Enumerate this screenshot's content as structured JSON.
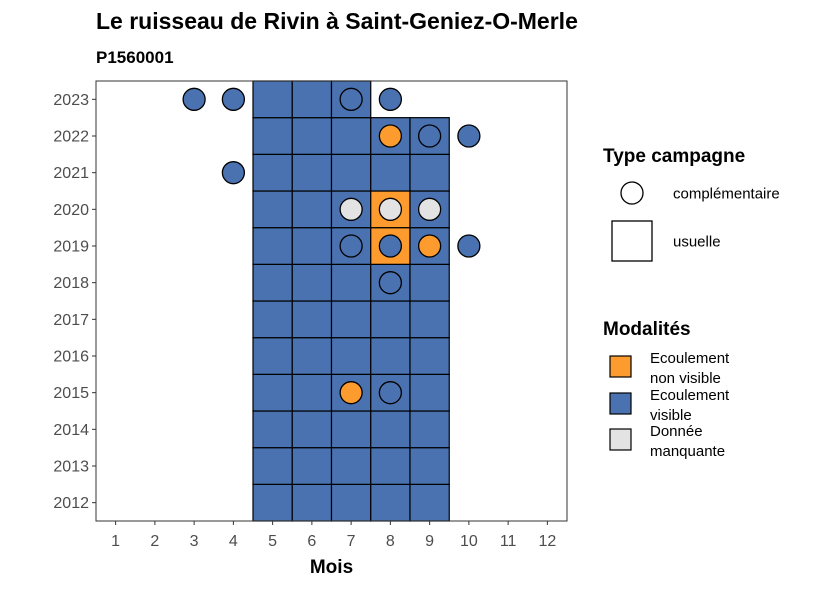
{
  "colors": {
    "Ecoulement visible": "#4a72b0",
    "Ecoulement non visible": "#fd9b2e",
    "Donnée manquante": "#e3e3e3"
  },
  "chart_data": {
    "type": "heatmap",
    "title": "Le ruisseau de Rivin à Saint-Geniez-O-Merle",
    "subtitle": "P1560001",
    "xlabel": "Mois",
    "ylabel": "",
    "x_ticks": [
      "1",
      "2",
      "3",
      "4",
      "5",
      "6",
      "7",
      "8",
      "9",
      "10",
      "11",
      "12"
    ],
    "y_ticks": [
      "2012",
      "2013",
      "2014",
      "2015",
      "2016",
      "2017",
      "2018",
      "2019",
      "2020",
      "2021",
      "2022",
      "2023"
    ],
    "xlim": [
      0.5,
      12.5
    ],
    "ylim": [
      2011.5,
      2023.5
    ],
    "usuelle": [
      {
        "year": 2012,
        "month": 5,
        "modalite": "Ecoulement visible"
      },
      {
        "year": 2012,
        "month": 6,
        "modalite": "Ecoulement visible"
      },
      {
        "year": 2012,
        "month": 7,
        "modalite": "Ecoulement visible"
      },
      {
        "year": 2012,
        "month": 8,
        "modalite": "Ecoulement visible"
      },
      {
        "year": 2012,
        "month": 9,
        "modalite": "Ecoulement visible"
      },
      {
        "year": 2013,
        "month": 5,
        "modalite": "Ecoulement visible"
      },
      {
        "year": 2013,
        "month": 6,
        "modalite": "Ecoulement visible"
      },
      {
        "year": 2013,
        "month": 7,
        "modalite": "Ecoulement visible"
      },
      {
        "year": 2013,
        "month": 8,
        "modalite": "Ecoulement visible"
      },
      {
        "year": 2013,
        "month": 9,
        "modalite": "Ecoulement visible"
      },
      {
        "year": 2014,
        "month": 5,
        "modalite": "Ecoulement visible"
      },
      {
        "year": 2014,
        "month": 6,
        "modalite": "Ecoulement visible"
      },
      {
        "year": 2014,
        "month": 7,
        "modalite": "Ecoulement visible"
      },
      {
        "year": 2014,
        "month": 8,
        "modalite": "Ecoulement visible"
      },
      {
        "year": 2014,
        "month": 9,
        "modalite": "Ecoulement visible"
      },
      {
        "year": 2015,
        "month": 5,
        "modalite": "Ecoulement visible"
      },
      {
        "year": 2015,
        "month": 6,
        "modalite": "Ecoulement visible"
      },
      {
        "year": 2015,
        "month": 7,
        "modalite": "Ecoulement visible"
      },
      {
        "year": 2015,
        "month": 8,
        "modalite": "Ecoulement visible"
      },
      {
        "year": 2015,
        "month": 9,
        "modalite": "Ecoulement visible"
      },
      {
        "year": 2016,
        "month": 5,
        "modalite": "Ecoulement visible"
      },
      {
        "year": 2016,
        "month": 6,
        "modalite": "Ecoulement visible"
      },
      {
        "year": 2016,
        "month": 7,
        "modalite": "Ecoulement visible"
      },
      {
        "year": 2016,
        "month": 8,
        "modalite": "Ecoulement visible"
      },
      {
        "year": 2016,
        "month": 9,
        "modalite": "Ecoulement visible"
      },
      {
        "year": 2017,
        "month": 5,
        "modalite": "Ecoulement visible"
      },
      {
        "year": 2017,
        "month": 6,
        "modalite": "Ecoulement visible"
      },
      {
        "year": 2017,
        "month": 7,
        "modalite": "Ecoulement visible"
      },
      {
        "year": 2017,
        "month": 8,
        "modalite": "Ecoulement visible"
      },
      {
        "year": 2017,
        "month": 9,
        "modalite": "Ecoulement visible"
      },
      {
        "year": 2018,
        "month": 5,
        "modalite": "Ecoulement visible"
      },
      {
        "year": 2018,
        "month": 6,
        "modalite": "Ecoulement visible"
      },
      {
        "year": 2018,
        "month": 7,
        "modalite": "Ecoulement visible"
      },
      {
        "year": 2018,
        "month": 8,
        "modalite": "Ecoulement visible"
      },
      {
        "year": 2018,
        "month": 9,
        "modalite": "Ecoulement visible"
      },
      {
        "year": 2019,
        "month": 5,
        "modalite": "Ecoulement visible"
      },
      {
        "year": 2019,
        "month": 6,
        "modalite": "Ecoulement visible"
      },
      {
        "year": 2019,
        "month": 7,
        "modalite": "Ecoulement visible"
      },
      {
        "year": 2019,
        "month": 8,
        "modalite": "Ecoulement non visible"
      },
      {
        "year": 2019,
        "month": 9,
        "modalite": "Ecoulement visible"
      },
      {
        "year": 2020,
        "month": 5,
        "modalite": "Ecoulement visible"
      },
      {
        "year": 2020,
        "month": 6,
        "modalite": "Ecoulement visible"
      },
      {
        "year": 2020,
        "month": 7,
        "modalite": "Ecoulement visible"
      },
      {
        "year": 2020,
        "month": 8,
        "modalite": "Ecoulement non visible"
      },
      {
        "year": 2020,
        "month": 9,
        "modalite": "Ecoulement visible"
      },
      {
        "year": 2021,
        "month": 5,
        "modalite": "Ecoulement visible"
      },
      {
        "year": 2021,
        "month": 6,
        "modalite": "Ecoulement visible"
      },
      {
        "year": 2021,
        "month": 7,
        "modalite": "Ecoulement visible"
      },
      {
        "year": 2021,
        "month": 8,
        "modalite": "Ecoulement visible"
      },
      {
        "year": 2021,
        "month": 9,
        "modalite": "Ecoulement visible"
      },
      {
        "year": 2022,
        "month": 5,
        "modalite": "Ecoulement visible"
      },
      {
        "year": 2022,
        "month": 6,
        "modalite": "Ecoulement visible"
      },
      {
        "year": 2022,
        "month": 7,
        "modalite": "Ecoulement visible"
      },
      {
        "year": 2022,
        "month": 8,
        "modalite": "Ecoulement visible"
      },
      {
        "year": 2022,
        "month": 9,
        "modalite": "Ecoulement visible"
      },
      {
        "year": 2023,
        "month": 5,
        "modalite": "Ecoulement visible"
      },
      {
        "year": 2023,
        "month": 6,
        "modalite": "Ecoulement visible"
      },
      {
        "year": 2023,
        "month": 7,
        "modalite": "Ecoulement visible"
      }
    ],
    "complementaire": [
      {
        "year": 2023,
        "month": 3,
        "modalite": "Ecoulement visible"
      },
      {
        "year": 2023,
        "month": 4,
        "modalite": "Ecoulement visible"
      },
      {
        "year": 2023,
        "month": 7,
        "modalite": "Ecoulement visible"
      },
      {
        "year": 2023,
        "month": 8,
        "modalite": "Ecoulement visible"
      },
      {
        "year": 2022,
        "month": 8,
        "modalite": "Ecoulement non visible"
      },
      {
        "year": 2022,
        "month": 9,
        "modalite": "Ecoulement visible"
      },
      {
        "year": 2022,
        "month": 10,
        "modalite": "Ecoulement visible"
      },
      {
        "year": 2021,
        "month": 4,
        "modalite": "Ecoulement visible"
      },
      {
        "year": 2020,
        "month": 7,
        "modalite": "Donnée manquante"
      },
      {
        "year": 2020,
        "month": 8,
        "modalite": "Donnée manquante"
      },
      {
        "year": 2020,
        "month": 9,
        "modalite": "Donnée manquante"
      },
      {
        "year": 2019,
        "month": 7,
        "modalite": "Ecoulement visible"
      },
      {
        "year": 2019,
        "month": 8,
        "modalite": "Ecoulement visible"
      },
      {
        "year": 2019,
        "month": 9,
        "modalite": "Ecoulement non visible"
      },
      {
        "year": 2019,
        "month": 10,
        "modalite": "Ecoulement visible"
      },
      {
        "year": 2018,
        "month": 8,
        "modalite": "Ecoulement visible"
      },
      {
        "year": 2015,
        "month": 7,
        "modalite": "Ecoulement non visible"
      },
      {
        "year": 2015,
        "month": 8,
        "modalite": "Ecoulement visible"
      }
    ],
    "legend_type": {
      "title": "Type campagne",
      "items": [
        {
          "label": "complémentaire",
          "shape": "circle"
        },
        {
          "label": "usuelle",
          "shape": "square"
        }
      ]
    },
    "legend_modalites": {
      "title": "Modalités",
      "items": [
        {
          "key": "Ecoulement non visible",
          "lines": [
            "Ecoulement",
            "non visible"
          ]
        },
        {
          "key": "Ecoulement visible",
          "lines": [
            "Ecoulement",
            "visible"
          ]
        },
        {
          "key": "Donnée manquante",
          "lines": [
            "Donnée",
            "manquante"
          ]
        }
      ]
    },
    "grid": false,
    "legend_position": "right"
  }
}
